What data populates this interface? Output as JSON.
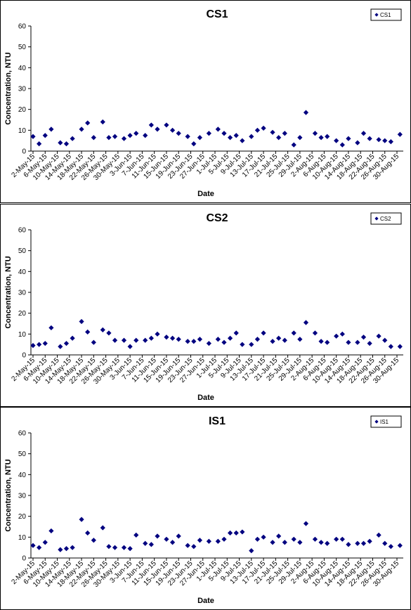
{
  "chart_data": [
    {
      "type": "scatter",
      "title": "CS1",
      "xlabel": "Date",
      "ylabel": "Concentration, NTU",
      "ylim": [
        0,
        60
      ],
      "yticks": [
        "0",
        "10",
        "20",
        "30",
        "40",
        "50",
        "60"
      ],
      "grid": false,
      "legend": "top-right",
      "marker_color": "#000080",
      "xtick_labels": [
        "2-May-15",
        "6-May-15",
        "10-May-15",
        "14-May-15",
        "18-May-15",
        "22-May-15",
        "26-May-15",
        "30-May-15",
        "3-Jun-15",
        "7-Jun-15",
        "11-Jun-15",
        "15-Jun-15",
        "19-Jun-15",
        "23-Jun-15",
        "27-Jun-15",
        "1-Jul-15",
        "5-Jul-15",
        "9-Jul-15",
        "13-Jul-15",
        "17-Jul-15",
        "21-Jul-15",
        "25-Jul-15",
        "29-Jul-15",
        "2-Aug-15",
        "6-Aug-15",
        "10-Aug-15",
        "14-Aug-15",
        "18-Aug-15",
        "22-Aug-15",
        "26-Aug-15",
        "30-Aug-15"
      ],
      "series": [
        {
          "name": "CS1",
          "x": [
            "2-May-15",
            "4-May-15",
            "6-May-15",
            "8-May-15",
            "11-May-15",
            "13-May-15",
            "15-May-15",
            "18-May-15",
            "20-May-15",
            "22-May-15",
            "25-May-15",
            "27-May-15",
            "29-May-15",
            "1-Jun-15",
            "3-Jun-15",
            "5-Jun-15",
            "8-Jun-15",
            "10-Jun-15",
            "12-Jun-15",
            "15-Jun-15",
            "17-Jun-15",
            "19-Jun-15",
            "22-Jun-15",
            "24-Jun-15",
            "26-Jun-15",
            "29-Jun-15",
            "2-Jul-15",
            "4-Jul-15",
            "6-Jul-15",
            "8-Jul-15",
            "10-Jul-15",
            "13-Jul-15",
            "15-Jul-15",
            "17-Jul-15",
            "20-Jul-15",
            "22-Jul-15",
            "24-Jul-15",
            "27-Jul-15",
            "29-Jul-15",
            "31-Jul-15",
            "3-Aug-15",
            "5-Aug-15",
            "7-Aug-15",
            "10-Aug-15",
            "12-Aug-15",
            "14-Aug-15",
            "17-Aug-15",
            "19-Aug-15",
            "21-Aug-15",
            "24-Aug-15",
            "26-Aug-15",
            "28-Aug-15",
            "31-Aug-15"
          ],
          "y": [
            7,
            3.5,
            7.5,
            10.5,
            4,
            3.5,
            6,
            10.5,
            13.5,
            6.5,
            14,
            6.5,
            7,
            6,
            7.5,
            8.5,
            7.5,
            12.5,
            10.5,
            12.5,
            10,
            8.5,
            7,
            3.5,
            6.5,
            8.5,
            10.5,
            8.5,
            6.5,
            7.5,
            5,
            7,
            10,
            11,
            9,
            6.5,
            8.5,
            3,
            6.5,
            18.5,
            8.5,
            6.5,
            7,
            5,
            3,
            6,
            4,
            8.5,
            6,
            5.5,
            5,
            4.5,
            8
          ]
        }
      ]
    },
    {
      "type": "scatter",
      "title": "CS2",
      "xlabel": "Date",
      "ylabel": "Concentration, NTU",
      "ylim": [
        0,
        60
      ],
      "yticks": [
        "0",
        "10",
        "20",
        "30",
        "40",
        "50",
        "60"
      ],
      "grid": false,
      "legend": "top-right",
      "marker_color": "#000080",
      "xtick_labels": [
        "2-May-15",
        "6-May-15",
        "10-May-15",
        "14-May-15",
        "18-May-15",
        "22-May-15",
        "26-May-15",
        "30-May-15",
        "3-Jun-15",
        "7-Jun-15",
        "11-Jun-15",
        "15-Jun-15",
        "19-Jun-15",
        "23-Jun-15",
        "27-Jun-15",
        "1-Jul-15",
        "5-Jul-15",
        "9-Jul-15",
        "13-Jul-15",
        "17-Jul-15",
        "21-Jul-15",
        "25-Jul-15",
        "29-Jul-15",
        "2-Aug-15",
        "6-Aug-15",
        "10-Aug-15",
        "14-Aug-15",
        "18-Aug-15",
        "22-Aug-15",
        "26-Aug-15",
        "30-Aug-15"
      ],
      "series": [
        {
          "name": "CS2",
          "x": [
            "2-May-15",
            "4-May-15",
            "6-May-15",
            "8-May-15",
            "11-May-15",
            "13-May-15",
            "15-May-15",
            "18-May-15",
            "20-May-15",
            "22-May-15",
            "25-May-15",
            "27-May-15",
            "29-May-15",
            "1-Jun-15",
            "3-Jun-15",
            "5-Jun-15",
            "8-Jun-15",
            "10-Jun-15",
            "12-Jun-15",
            "15-Jun-15",
            "17-Jun-15",
            "19-Jun-15",
            "22-Jun-15",
            "24-Jun-15",
            "26-Jun-15",
            "29-Jun-15",
            "2-Jul-15",
            "4-Jul-15",
            "6-Jul-15",
            "8-Jul-15",
            "10-Jul-15",
            "13-Jul-15",
            "15-Jul-15",
            "17-Jul-15",
            "20-Jul-15",
            "22-Jul-15",
            "24-Jul-15",
            "27-Jul-15",
            "29-Jul-15",
            "31-Jul-15",
            "3-Aug-15",
            "5-Aug-15",
            "7-Aug-15",
            "10-Aug-15",
            "12-Aug-15",
            "14-Aug-15",
            "17-Aug-15",
            "19-Aug-15",
            "21-Aug-15",
            "24-Aug-15",
            "26-Aug-15",
            "28-Aug-15",
            "31-Aug-15"
          ],
          "y": [
            4.5,
            5,
            5.5,
            13,
            4,
            5.5,
            8,
            16,
            11,
            6,
            12,
            10.5,
            7,
            7,
            4,
            7,
            7,
            8,
            10,
            8.5,
            8,
            7.5,
            6.5,
            6.5,
            7.5,
            5.5,
            7.5,
            6,
            8,
            10.5,
            5,
            5,
            7.5,
            10.5,
            6.5,
            8,
            7,
            10.5,
            7.5,
            15.5,
            10.5,
            6.5,
            6,
            9,
            10,
            6,
            6,
            8.5,
            5.5,
            9,
            7,
            4,
            4
          ]
        }
      ]
    },
    {
      "type": "scatter",
      "title": "IS1",
      "xlabel": "Date",
      "ylabel": "Concentration, NTU",
      "ylim": [
        0,
        60
      ],
      "yticks": [
        "0",
        "10",
        "20",
        "30",
        "40",
        "50",
        "60"
      ],
      "grid": false,
      "legend": "top-right",
      "marker_color": "#000080",
      "xtick_labels": [
        "2-May-15",
        "6-May-15",
        "10-May-15",
        "14-May-15",
        "18-May-15",
        "22-May-15",
        "26-May-15",
        "30-May-15",
        "3-Jun-15",
        "7-Jun-15",
        "11-Jun-15",
        "15-Jun-15",
        "19-Jun-15",
        "23-Jun-15",
        "27-Jun-15",
        "1-Jul-15",
        "5-Jul-15",
        "9-Jul-15",
        "13-Jul-15",
        "17-Jul-15",
        "21-Jul-15",
        "25-Jul-15",
        "29-Jul-15",
        "2-Aug-15",
        "6-Aug-15",
        "10-Aug-15",
        "14-Aug-15",
        "18-Aug-15",
        "22-Aug-15",
        "26-Aug-15",
        "30-Aug-15"
      ],
      "series": [
        {
          "name": "IS1",
          "x": [
            "2-May-15",
            "4-May-15",
            "6-May-15",
            "8-May-15",
            "11-May-15",
            "13-May-15",
            "15-May-15",
            "18-May-15",
            "20-May-15",
            "22-May-15",
            "25-May-15",
            "27-May-15",
            "29-May-15",
            "1-Jun-15",
            "3-Jun-15",
            "5-Jun-15",
            "8-Jun-15",
            "10-Jun-15",
            "12-Jun-15",
            "15-Jun-15",
            "17-Jun-15",
            "19-Jun-15",
            "22-Jun-15",
            "24-Jun-15",
            "26-Jun-15",
            "29-Jun-15",
            "2-Jul-15",
            "4-Jul-15",
            "6-Jul-15",
            "8-Jul-15",
            "10-Jul-15",
            "13-Jul-15",
            "15-Jul-15",
            "17-Jul-15",
            "20-Jul-15",
            "22-Jul-15",
            "24-Jul-15",
            "27-Jul-15",
            "29-Jul-15",
            "31-Jul-15",
            "3-Aug-15",
            "5-Aug-15",
            "7-Aug-15",
            "10-Aug-15",
            "12-Aug-15",
            "14-Aug-15",
            "17-Aug-15",
            "19-Aug-15",
            "21-Aug-15",
            "24-Aug-15",
            "26-Aug-15",
            "28-Aug-15",
            "31-Aug-15"
          ],
          "y": [
            6,
            5,
            7.5,
            13,
            4,
            4.5,
            5,
            18.5,
            12,
            8.5,
            14.5,
            5.5,
            5,
            5,
            4.5,
            11,
            7,
            6.5,
            10.5,
            9,
            7.5,
            10.5,
            6,
            5.5,
            8.5,
            8,
            8,
            9,
            12,
            12,
            12.5,
            3.5,
            9,
            10,
            7.5,
            10.5,
            7.5,
            9,
            7.5,
            16.5,
            9,
            7.5,
            7,
            9,
            9,
            6.5,
            7,
            7,
            8,
            11,
            7,
            5.5,
            6
          ]
        }
      ]
    }
  ]
}
